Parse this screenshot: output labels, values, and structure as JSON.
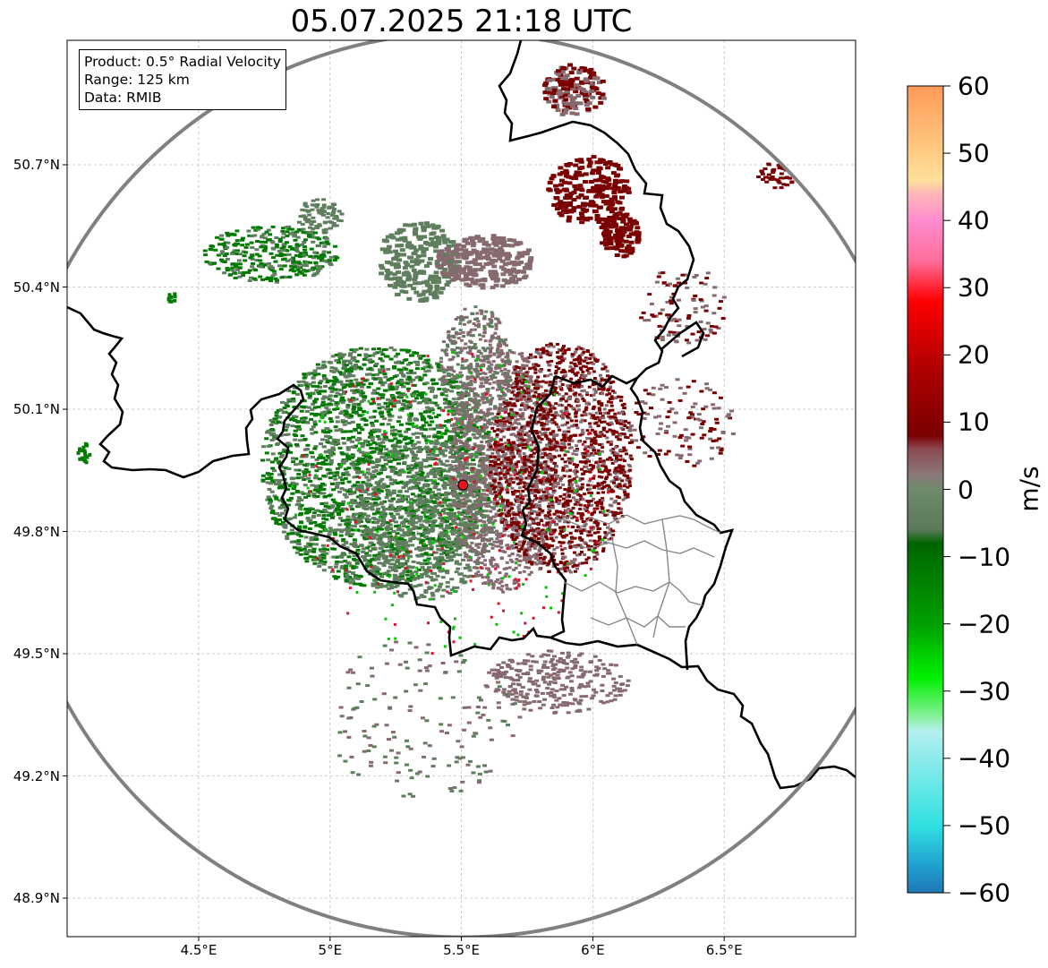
{
  "title": "05.07.2025 21:18 UTC",
  "info": {
    "product": "Product: 0.5° Radial Velocity",
    "range": "Range: 125 km",
    "data": "Data: RMIB"
  },
  "map": {
    "lat_labels": [
      "50.7°N",
      "50.4°N",
      "50.1°N",
      "49.8°N",
      "49.5°N",
      "49.2°N",
      "48.9°N"
    ],
    "lat_values": [
      50.7,
      50.4,
      50.1,
      49.8,
      49.5,
      49.2,
      48.9
    ],
    "lon_labels": [
      "4.5°E",
      "5°E",
      "5.5°E",
      "6°E",
      "6.5°E"
    ],
    "lon_values": [
      4.5,
      5.0,
      5.5,
      6.0,
      6.5
    ],
    "extent": {
      "lon_min": 4.0,
      "lon_max": 7.0,
      "lat_min": 48.8,
      "lat_max": 51.0
    },
    "radar_site": {
      "lon": 5.506,
      "lat": 49.914
    },
    "range_km": 125,
    "colors": {
      "border": "#000000",
      "range_ring": "#808080",
      "grid": "#bfbfbf",
      "radar_marker": "#e8161c"
    }
  },
  "colorbar": {
    "unit": "m/s",
    "min": -60,
    "max": 60,
    "tick_values": [
      60,
      50,
      40,
      30,
      20,
      10,
      0,
      -10,
      -20,
      -30,
      -40,
      -50,
      -60
    ],
    "tick_labels": [
      "60",
      "50",
      "40",
      "30",
      "20",
      "10",
      "0",
      "−10",
      "−20",
      "−30",
      "−40",
      "−50",
      "−60"
    ],
    "stops": [
      {
        "value": 60,
        "color": "#ff9a5a"
      },
      {
        "value": 52,
        "color": "#ffc27a"
      },
      {
        "value": 46,
        "color": "#ffe09a"
      },
      {
        "value": 44,
        "color": "#ffb7b7"
      },
      {
        "value": 40,
        "color": "#ff8ccf"
      },
      {
        "value": 34,
        "color": "#ff6d9a"
      },
      {
        "value": 28,
        "color": "#ff0000"
      },
      {
        "value": 18,
        "color": "#b00000"
      },
      {
        "value": 8,
        "color": "#7a0000"
      },
      {
        "value": 6,
        "color": "#8c4a52"
      },
      {
        "value": 2,
        "color": "#8a7a7a"
      },
      {
        "value": 0,
        "color": "#6e8a6a"
      },
      {
        "value": -6,
        "color": "#5a7a5a"
      },
      {
        "value": -8,
        "color": "#006400"
      },
      {
        "value": -20,
        "color": "#00a000"
      },
      {
        "value": -28,
        "color": "#00f000"
      },
      {
        "value": -34,
        "color": "#8cf0a0"
      },
      {
        "value": -36,
        "color": "#b4f0f0"
      },
      {
        "value": -50,
        "color": "#30e0e0"
      },
      {
        "value": -56,
        "color": "#20a0d0"
      },
      {
        "value": -60,
        "color": "#1f77b4"
      }
    ]
  },
  "velocity_colors": {
    "toward_strong": "#007a00",
    "toward_weak": "#5e7e5e",
    "away_weak": "#866a70",
    "away_strong": "#7a0000",
    "speckle_green": "#00c800",
    "speckle_red": "#e0102a"
  }
}
